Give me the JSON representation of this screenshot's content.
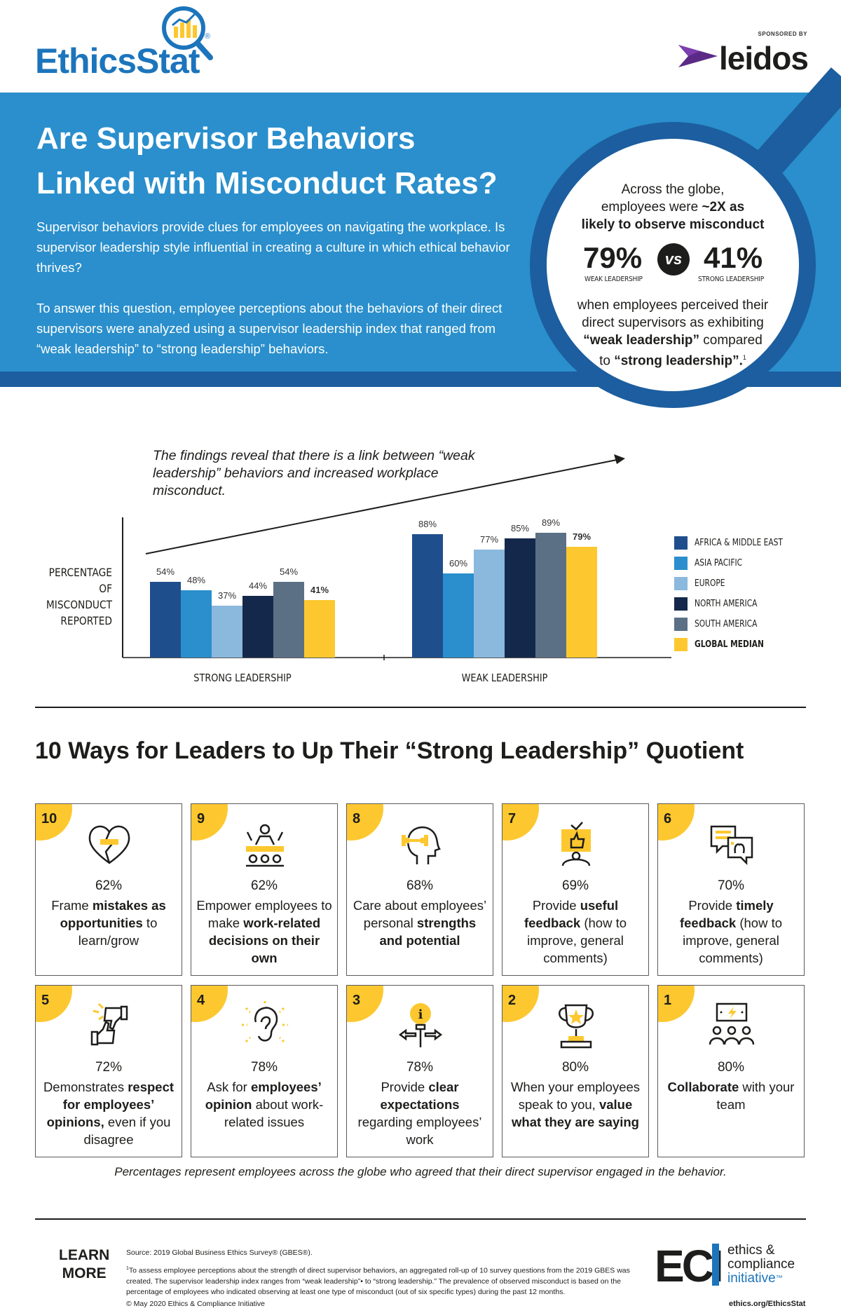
{
  "header": {
    "logo_text": "EthicsStat",
    "logo_reg": "®",
    "sponsor_label": "SPONSORED BY",
    "sponsor_name": "leidos"
  },
  "hero": {
    "title_line1": "Are Supervisor Behaviors",
    "title_line2": "Linked with Misconduct Rates?",
    "para1": "Supervisor behaviors provide clues for employees on navigating the workplace. Is supervisor leadership style influential in creating a culture in which ethical behavior thrives?",
    "para2": "To answer this question, employee perceptions about the behaviors of their direct supervisors were analyzed using a supervisor leadership index that ranged from “weak leadership” to “strong leadership” behaviors.",
    "circle": {
      "line1": "Across the globe,",
      "line2a": "employees were ",
      "line2b": "~2X as",
      "line3": "likely to observe misconduct",
      "weak_pct": "79%",
      "weak_label": "WEAK LEADERSHIP",
      "vs": "vs",
      "strong_pct": "41%",
      "strong_label": "STRONG LEADERSHIP",
      "line4": "when employees perceived their",
      "line5": "direct supervisors as exhibiting",
      "line6a": "“weak leadership”",
      "line6b": " compared",
      "line7a": "to ",
      "line7b": "“strong leadership”.",
      "footnote": "1"
    }
  },
  "chart_data": {
    "type": "bar",
    "note": "The findings reveal that there is a link between “weak leadership” behaviors and increased workplace misconduct.",
    "ylabel_lines": [
      "PERCENTAGE",
      "OF MISCONDUCT",
      "REPORTED"
    ],
    "categories": [
      "STRONG LEADERSHIP",
      "WEAK LEADERSHIP"
    ],
    "series": [
      {
        "name": "AFRICA & MIDDLE EAST",
        "color": "#1f4e8c",
        "values": [
          54,
          88
        ]
      },
      {
        "name": "ASIA PACIFIC",
        "color": "#2a8fcc",
        "values": [
          48,
          60
        ]
      },
      {
        "name": "EUROPE",
        "color": "#8bb8dd",
        "values": [
          37,
          77
        ]
      },
      {
        "name": "NORTH AMERICA",
        "color": "#14284b",
        "values": [
          44,
          85
        ]
      },
      {
        "name": "SOUTH AMERICA",
        "color": "#5b7085",
        "values": [
          54,
          89
        ]
      },
      {
        "name": "GLOBAL MEDIAN",
        "color": "#fdc82f",
        "values": [
          41,
          79
        ]
      }
    ],
    "ylim": [
      0,
      100
    ],
    "legend": "right",
    "grid": false
  },
  "ways": {
    "title": "10 Ways for Leaders to Up Their “Strong Leadership” Quotient",
    "footnote": "Percentages represent employees across the globe who agreed that their direct supervisor engaged in the behavior.",
    "cards": [
      {
        "rank": "10",
        "pct": "62%",
        "icon": "broken-heart-icon",
        "parts": [
          [
            "Frame ",
            false
          ],
          [
            "mistakes as opportunities",
            true
          ],
          [
            " to learn/grow",
            false
          ]
        ]
      },
      {
        "rank": "9",
        "pct": "62%",
        "icon": "team-meeting-icon",
        "parts": [
          [
            "Empower employees to make ",
            false
          ],
          [
            "work-related decisions on their own",
            true
          ]
        ]
      },
      {
        "rank": "8",
        "pct": "68%",
        "icon": "head-dumbbell-icon",
        "parts": [
          [
            "Care about employees’ personal ",
            false
          ],
          [
            "strengths and potential",
            true
          ]
        ]
      },
      {
        "rank": "7",
        "pct": "69%",
        "icon": "thumbs-up-screen-icon",
        "parts": [
          [
            "Provide ",
            false
          ],
          [
            "useful feedback",
            true
          ],
          [
            " (how to improve, general comments)",
            false
          ]
        ]
      },
      {
        "rank": "6",
        "pct": "70%",
        "icon": "chat-bubbles-icon",
        "parts": [
          [
            "Provide ",
            false
          ],
          [
            "timely feedback",
            true
          ],
          [
            " (how to improve, general comments)",
            false
          ]
        ]
      },
      {
        "rank": "5",
        "pct": "72%",
        "icon": "thumbs-up-down-icon",
        "parts": [
          [
            "Demonstrates ",
            false
          ],
          [
            "respect for employees’ opinions,",
            true
          ],
          [
            " even if you disagree",
            false
          ]
        ]
      },
      {
        "rank": "4",
        "pct": "78%",
        "icon": "ear-icon",
        "parts": [
          [
            "Ask for ",
            false
          ],
          [
            "employees’ opinion",
            true
          ],
          [
            " about work-related issues",
            false
          ]
        ]
      },
      {
        "rank": "3",
        "pct": "78%",
        "icon": "lightbulb-arrows-icon",
        "parts": [
          [
            "Provide ",
            false
          ],
          [
            "clear expectations",
            true
          ],
          [
            " regarding employees’ work",
            false
          ]
        ]
      },
      {
        "rank": "2",
        "pct": "80%",
        "icon": "trophy-icon",
        "parts": [
          [
            "When your employees speak to you, ",
            false
          ],
          [
            "value what they are saying",
            true
          ]
        ]
      },
      {
        "rank": "1",
        "pct": "80%",
        "icon": "collaborate-team-icon",
        "parts": [
          [
            "Collaborate",
            true
          ],
          [
            " with your team",
            false
          ]
        ]
      }
    ]
  },
  "footer": {
    "learn_line1": "LEARN",
    "learn_line2": "MORE",
    "source": "Source: 2019 Global Business Ethics Survey® (GBES®).",
    "note_mark": "1",
    "note": "To assess employee perceptions about the strength of direct supervisor behaviors, an aggregated roll-up of 10 survey questions from the 2019 GBES was created. The supervisor leadership index ranges from “weak leadership”• to “strong leadership.” The prevalence of observed misconduct is based on the percentage of employees who indicated observing at least one type of misconduct (out of six specific types) during the past 12 months.",
    "copyright": "© May 2020 Ethics & Compliance Initiative",
    "eci_mark": "ECI",
    "eci_word1": "ethics &",
    "eci_word2": "compliance",
    "eci_word3": "initiative",
    "eci_tm": "™",
    "url": "ethics.org/EthicsStat"
  }
}
